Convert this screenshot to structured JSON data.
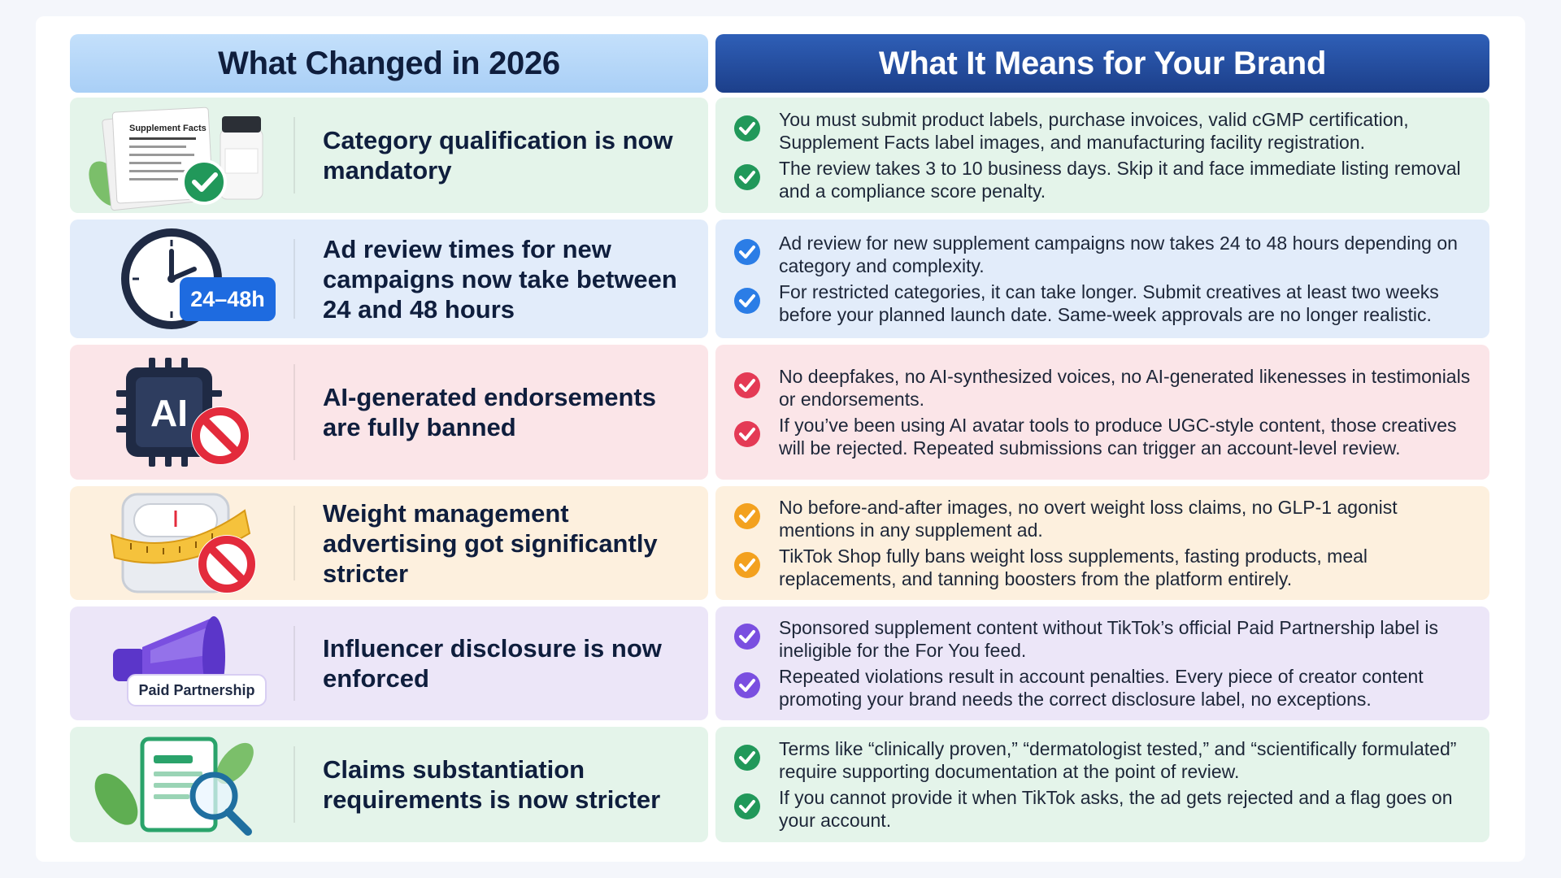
{
  "header": {
    "left": "What Changed in 2026",
    "right": "What It Means for Your Brand"
  },
  "colors": {
    "green_check": "#21985a",
    "blue_check": "#2b7de6",
    "red_check": "#e43a55",
    "orange_check": "#f3a11f",
    "purple_check": "#7a4fe0"
  },
  "rows": [
    {
      "title": "Category qualification is now mandatory",
      "icon": "supplement-facts-document-icon",
      "illustration_text": "Supplement Facts",
      "bullets": [
        "You must submit product labels, purchase invoices, valid cGMP certification, Supplement Facts label images, and manufacturing facility registration.",
        "The review takes 3 to 10 business days. Skip it and face immediate listing removal and a compliance score penalty."
      ]
    },
    {
      "title": "Ad review times for new campaigns now take between 24 and 48 hours",
      "icon": "clock-icon",
      "illustration_text": "24–48h",
      "bullets": [
        "Ad review for new supplement campaigns now takes 24 to 48 hours depending on category and complexity.",
        "For restricted categories, it can take longer. Submit creatives at least two weeks before your planned launch date. Same-week approvals are no longer realistic."
      ]
    },
    {
      "title": "AI-generated endorsements are fully banned",
      "icon": "ai-chip-banned-icon",
      "illustration_text": "AI",
      "bullets": [
        "No deepfakes, no AI-synthesized voices, no AI-generated likenesses in testimonials or endorsements.",
        "If you’ve been using AI avatar tools to produce UGC-style content, those creatives will be rejected. Repeated submissions can trigger an account-level review."
      ]
    },
    {
      "title": "Weight management advertising got significantly stricter",
      "icon": "scale-tape-banned-icon",
      "bullets": [
        "No before-and-after images, no overt weight loss claims, no GLP-1 agonist mentions in any supplement ad.",
        "TikTok Shop fully bans weight loss supplements, fasting products, meal replacements, and tanning boosters from the platform entirely."
      ]
    },
    {
      "title": "Influencer disclosure is now enforced",
      "icon": "megaphone-icon",
      "illustration_text": "Paid Partnership",
      "bullets": [
        "Sponsored supplement content without TikTok’s official Paid Partnership label is ineligible for the For You feed.",
        "Repeated violations result in account penalties. Every piece of creator content promoting your brand needs the correct disclosure label, no exceptions."
      ]
    },
    {
      "title": "Claims substantiation requirements is now stricter",
      "icon": "document-magnifier-icon",
      "bullets": [
        "Terms like “clinically proven,” “dermatologist tested,” and “scientifically formulated” require supporting documentation at the point of review.",
        "If you cannot provide it when TikTok asks, the ad gets rejected and a flag goes on your account."
      ]
    }
  ]
}
